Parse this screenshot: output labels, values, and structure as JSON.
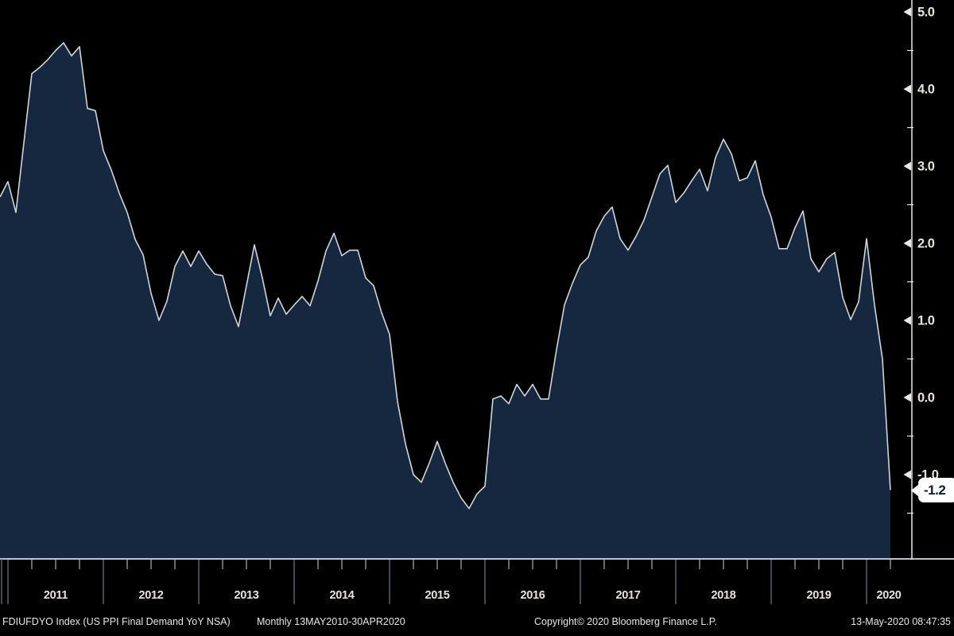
{
  "chart_data": {
    "type": "area",
    "title": "FDIUFDYO Index (US PPI Final Demand YoY NSA)",
    "frequency_range": "Monthly 13MAY2010-30APR2020",
    "xlabel": "",
    "ylabel": "",
    "x_start_month": "2010-12",
    "x_end_month": "2020-04",
    "x_year_labels": [
      "2011",
      "2012",
      "2013",
      "2014",
      "2015",
      "2016",
      "2017",
      "2018",
      "2019",
      "2020"
    ],
    "ylim": [
      -2.1,
      5.15
    ],
    "yticks_major": [
      5.0,
      4.0,
      3.0,
      2.0,
      1.0,
      0.0,
      -1.0
    ],
    "yticks_minor": [
      4.5,
      3.5,
      2.5,
      1.5,
      0.5,
      -0.5,
      -1.5
    ],
    "grid": false,
    "legend_position": "none",
    "axis_side": "right",
    "last_value": -1.2,
    "last_value_label": "-1.2",
    "series": [
      {
        "name": "US PPI Final Demand YoY NSA",
        "monthly_values": [
          2.6,
          2.8,
          2.4,
          3.3,
          4.2,
          4.28,
          4.38,
          4.5,
          4.6,
          4.43,
          4.55,
          3.75,
          3.72,
          3.2,
          2.95,
          2.65,
          2.4,
          2.05,
          1.85,
          1.35,
          1.0,
          1.25,
          1.7,
          1.9,
          1.7,
          1.9,
          1.73,
          1.6,
          1.58,
          1.19,
          0.92,
          1.45,
          1.98,
          1.55,
          1.06,
          1.29,
          1.08,
          1.2,
          1.31,
          1.19,
          1.51,
          1.9,
          2.13,
          1.84,
          1.91,
          1.91,
          1.55,
          1.45,
          1.1,
          0.82,
          -0.05,
          -0.6,
          -1.0,
          -1.1,
          -0.85,
          -0.57,
          -0.85,
          -1.1,
          -1.3,
          -1.44,
          -1.25,
          -1.15,
          -0.02,
          0.02,
          -0.08,
          0.17,
          0.02,
          0.17,
          -0.02,
          -0.02,
          0.62,
          1.2,
          1.48,
          1.72,
          1.82,
          2.16,
          2.35,
          2.47,
          2.06,
          1.91,
          2.09,
          2.3,
          2.6,
          2.9,
          3.01,
          2.53,
          2.65,
          2.81,
          2.96,
          2.68,
          3.11,
          3.35,
          3.16,
          2.81,
          2.85,
          3.07,
          2.63,
          2.34,
          1.93,
          1.93,
          2.2,
          2.42,
          1.8,
          1.63,
          1.8,
          1.88,
          1.3,
          1.01,
          1.24,
          2.06,
          1.2,
          0.5,
          -1.2
        ]
      }
    ],
    "colors": {
      "background": "#000000",
      "area_fill": "#16283f",
      "line": "#cfd5dc",
      "axis": "#e8e8e8",
      "axis_labels": "#e8e4da",
      "year_divider": "#707a85",
      "minor_tick": "#d0d5da",
      "baseline": "#b8c3d1",
      "badge_bg": "#ffffff",
      "badge_text": "#0e1c30"
    }
  },
  "footer": {
    "left": "FDIUFDYO Index (US PPI Final Demand YoY NSA)",
    "frequency": "Monthly 13MAY2010-30APR2020",
    "copyright": "Copyright© 2020 Bloomberg Finance L.P.",
    "timestamp": "13-May-2020 08:47:35"
  }
}
